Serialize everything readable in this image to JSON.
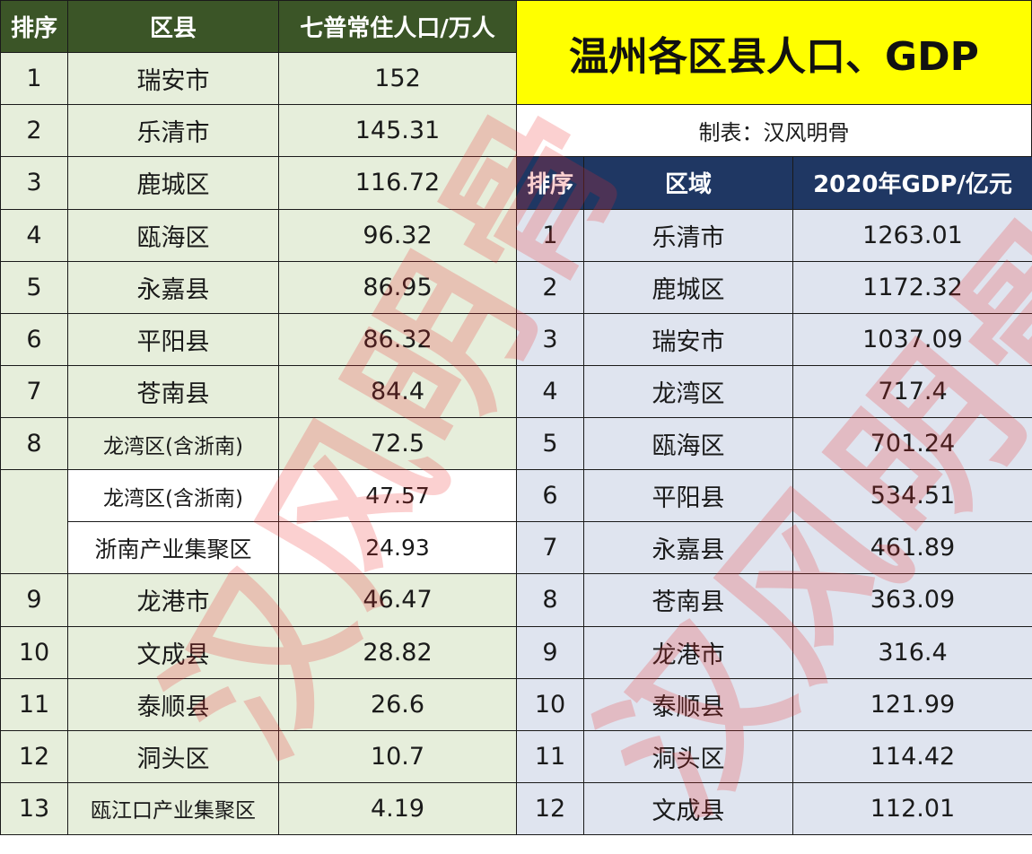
{
  "title": "温州各区县人口、GDP",
  "maker": "制表：汉风明骨",
  "watermark": "汉风明骨",
  "colors": {
    "left_header": "#3b5527",
    "left_body": "#e6eedb",
    "right_header": "#1f3763",
    "right_body": "#dfe4ef",
    "title_bg": "#ffff00"
  },
  "population": {
    "headers": [
      "排序",
      "区县",
      "七普常住人口/万人"
    ],
    "rows": [
      {
        "rank": "1",
        "name": "瑞安市",
        "value": "152"
      },
      {
        "rank": "2",
        "name": "乐清市",
        "value": "145.31"
      },
      {
        "rank": "3",
        "name": "鹿城区",
        "value": "116.72"
      },
      {
        "rank": "4",
        "name": "瓯海区",
        "value": "96.32"
      },
      {
        "rank": "5",
        "name": "永嘉县",
        "value": "86.95"
      },
      {
        "rank": "6",
        "name": "平阳县",
        "value": "86.32"
      },
      {
        "rank": "7",
        "name": "苍南县",
        "value": "84.4"
      },
      {
        "rank": "8",
        "name": "龙湾区(含浙南)",
        "value": "72.5"
      },
      {
        "rank": "",
        "name": "龙湾区(含浙南)",
        "value": "47.57",
        "sub": true
      },
      {
        "rank": "",
        "name": "浙南产业集聚区",
        "value": "24.93",
        "sub": true
      },
      {
        "rank": "9",
        "name": "龙港市",
        "value": "46.47"
      },
      {
        "rank": "10",
        "name": "文成县",
        "value": "28.82"
      },
      {
        "rank": "11",
        "name": "泰顺县",
        "value": "26.6"
      },
      {
        "rank": "12",
        "name": "洞头区",
        "value": "10.7"
      },
      {
        "rank": "13",
        "name": "瓯江口产业集聚区",
        "value": "4.19"
      }
    ]
  },
  "gdp": {
    "headers": [
      "排序",
      "区域",
      "2020年GDP/亿元"
    ],
    "rows": [
      {
        "rank": "1",
        "name": "乐清市",
        "value": "1263.01"
      },
      {
        "rank": "2",
        "name": "鹿城区",
        "value": "1172.32"
      },
      {
        "rank": "3",
        "name": "瑞安市",
        "value": "1037.09"
      },
      {
        "rank": "4",
        "name": "龙湾区",
        "value": "717.4"
      },
      {
        "rank": "5",
        "name": "瓯海区",
        "value": "701.24"
      },
      {
        "rank": "6",
        "name": "平阳县",
        "value": "534.51"
      },
      {
        "rank": "7",
        "name": "永嘉县",
        "value": "461.89"
      },
      {
        "rank": "8",
        "name": "苍南县",
        "value": "363.09"
      },
      {
        "rank": "9",
        "name": "龙港市",
        "value": "316.4"
      },
      {
        "rank": "10",
        "name": "泰顺县",
        "value": "121.99"
      },
      {
        "rank": "11",
        "name": "洞头区",
        "value": "114.42"
      },
      {
        "rank": "12",
        "name": "文成县",
        "value": "112.01"
      }
    ]
  }
}
